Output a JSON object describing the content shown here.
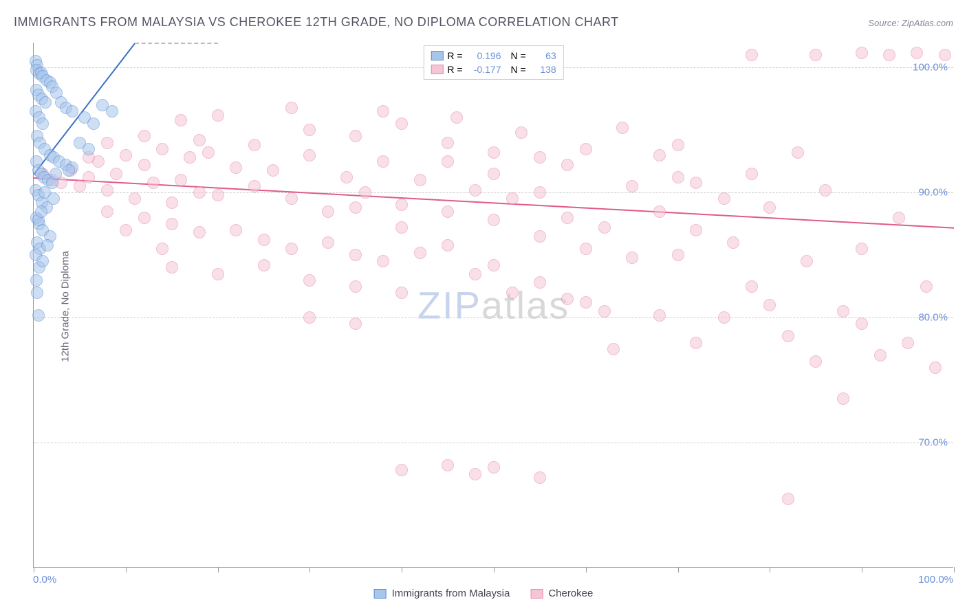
{
  "title": "IMMIGRANTS FROM MALAYSIA VS CHEROKEE 12TH GRADE, NO DIPLOMA CORRELATION CHART",
  "source_label": "Source:",
  "source_value": "ZipAtlas.com",
  "ylabel": "12th Grade, No Diploma",
  "watermark_a": "ZIP",
  "watermark_b": "atlas",
  "chart": {
    "type": "scatter",
    "xlim": [
      0,
      100
    ],
    "ylim": [
      60,
      102
    ],
    "x_ticks": [
      0,
      10,
      20,
      30,
      40,
      50,
      60,
      70,
      80,
      90,
      100
    ],
    "y_ticks": [
      70,
      80,
      90,
      100
    ],
    "x_tick_labels": {
      "0": "0.0%",
      "100": "100.0%"
    },
    "y_tick_labels": {
      "70": "70.0%",
      "80": "80.0%",
      "90": "90.0%",
      "100": "100.0%"
    },
    "grid_color": "#cccccc",
    "axis_color": "#999999",
    "tick_label_color": "#6a8fd8",
    "background_color": "#ffffff",
    "point_radius": 9,
    "point_stroke_width": 1.2,
    "point_fill_opacity": 0.25
  },
  "series": [
    {
      "name": "Immigrants from Malaysia",
      "color_stroke": "#5b8fd6",
      "color_fill": "#a8c5ea",
      "R_label": "R =",
      "R_value": "0.196",
      "N_label": "N =",
      "N_value": "63",
      "trend": {
        "x1": 0,
        "y1": 91.5,
        "x2": 11,
        "y2": 102,
        "color": "#3a6fc8",
        "width": 2,
        "dash_ext": true,
        "dash_x2": 20,
        "dash_y2": 110
      },
      "points": [
        [
          0.2,
          100.5
        ],
        [
          0.4,
          100.2
        ],
        [
          0.3,
          99.8
        ],
        [
          0.6,
          99.5
        ],
        [
          0.8,
          99.6
        ],
        [
          1.0,
          99.3
        ],
        [
          1.4,
          99.0
        ],
        [
          1.8,
          98.8
        ],
        [
          0.3,
          98.2
        ],
        [
          0.5,
          97.8
        ],
        [
          0.9,
          97.5
        ],
        [
          1.3,
          97.2
        ],
        [
          0.2,
          96.5
        ],
        [
          0.6,
          96.0
        ],
        [
          1.0,
          95.5
        ],
        [
          2.0,
          98.5
        ],
        [
          2.5,
          98.0
        ],
        [
          3.0,
          97.2
        ],
        [
          3.5,
          96.8
        ],
        [
          4.2,
          96.5
        ],
        [
          5.5,
          96.0
        ],
        [
          6.5,
          95.5
        ],
        [
          7.5,
          97.0
        ],
        [
          8.5,
          96.5
        ],
        [
          0.4,
          94.5
        ],
        [
          0.7,
          94.0
        ],
        [
          1.2,
          93.5
        ],
        [
          1.8,
          93.0
        ],
        [
          2.2,
          92.8
        ],
        [
          2.8,
          92.5
        ],
        [
          3.5,
          92.2
        ],
        [
          4.2,
          92.0
        ],
        [
          0.3,
          92.5
        ],
        [
          0.5,
          91.8
        ],
        [
          0.8,
          91.5
        ],
        [
          1.1,
          91.2
        ],
        [
          1.6,
          91.0
        ],
        [
          2.0,
          90.8
        ],
        [
          5.0,
          94.0
        ],
        [
          6.0,
          93.5
        ],
        [
          0.2,
          90.2
        ],
        [
          0.5,
          89.8
        ],
        [
          0.9,
          89.2
        ],
        [
          1.4,
          88.8
        ],
        [
          0.3,
          88.0
        ],
        [
          0.6,
          87.5
        ],
        [
          1.0,
          87.0
        ],
        [
          1.8,
          86.5
        ],
        [
          0.4,
          86.0
        ],
        [
          0.7,
          85.5
        ],
        [
          0.2,
          85.0
        ],
        [
          0.5,
          87.8
        ],
        [
          0.8,
          88.5
        ],
        [
          1.2,
          90.0
        ],
        [
          2.4,
          91.5
        ],
        [
          3.8,
          91.8
        ],
        [
          0.3,
          83.0
        ],
        [
          0.6,
          84.0
        ],
        [
          0.4,
          82.0
        ],
        [
          0.5,
          80.2
        ],
        [
          1.0,
          84.5
        ],
        [
          1.5,
          85.8
        ],
        [
          2.2,
          89.5
        ]
      ]
    },
    {
      "name": "Cherokee",
      "color_stroke": "#e88aa8",
      "color_fill": "#f5c5d4",
      "R_label": "R =",
      "R_value": "-0.177",
      "N_label": "N =",
      "N_value": "138",
      "trend": {
        "x1": 0,
        "y1": 91.2,
        "x2": 100,
        "y2": 87.2,
        "color": "#e05a8a",
        "width": 2
      },
      "points": [
        [
          1,
          91.5
        ],
        [
          2,
          91.0
        ],
        [
          3,
          90.8
        ],
        [
          4,
          91.8
        ],
        [
          5,
          90.5
        ],
        [
          6,
          91.2
        ],
        [
          7,
          92.5
        ],
        [
          8,
          90.2
        ],
        [
          9,
          91.5
        ],
        [
          10,
          93.0
        ],
        [
          11,
          89.5
        ],
        [
          12,
          92.2
        ],
        [
          13,
          90.8
        ],
        [
          14,
          93.5
        ],
        [
          15,
          89.2
        ],
        [
          16,
          91.0
        ],
        [
          17,
          92.8
        ],
        [
          18,
          90.0
        ],
        [
          19,
          93.2
        ],
        [
          20,
          89.8
        ],
        [
          22,
          92.0
        ],
        [
          24,
          90.5
        ],
        [
          26,
          91.8
        ],
        [
          28,
          89.5
        ],
        [
          30,
          93.0
        ],
        [
          32,
          88.5
        ],
        [
          34,
          91.2
        ],
        [
          36,
          90.0
        ],
        [
          38,
          92.5
        ],
        [
          40,
          89.0
        ],
        [
          12,
          88.0
        ],
        [
          15,
          87.5
        ],
        [
          18,
          86.8
        ],
        [
          22,
          87.0
        ],
        [
          25,
          86.2
        ],
        [
          28,
          85.5
        ],
        [
          32,
          86.0
        ],
        [
          35,
          85.0
        ],
        [
          38,
          84.5
        ],
        [
          42,
          85.2
        ],
        [
          15,
          84.0
        ],
        [
          20,
          83.5
        ],
        [
          25,
          84.2
        ],
        [
          30,
          83.0
        ],
        [
          35,
          82.5
        ],
        [
          40,
          82.0
        ],
        [
          8,
          94.0
        ],
        [
          12,
          94.5
        ],
        [
          18,
          94.2
        ],
        [
          24,
          93.8
        ],
        [
          30,
          95.0
        ],
        [
          35,
          94.5
        ],
        [
          40,
          95.5
        ],
        [
          45,
          94.0
        ],
        [
          50,
          93.2
        ],
        [
          55,
          92.8
        ],
        [
          60,
          93.5
        ],
        [
          65,
          90.5
        ],
        [
          70,
          91.2
        ],
        [
          75,
          89.5
        ],
        [
          42,
          91.0
        ],
        [
          45,
          88.5
        ],
        [
          48,
          90.2
        ],
        [
          50,
          87.8
        ],
        [
          52,
          89.5
        ],
        [
          55,
          86.5
        ],
        [
          58,
          88.0
        ],
        [
          60,
          85.5
        ],
        [
          62,
          87.2
        ],
        [
          65,
          84.8
        ],
        [
          45,
          92.5
        ],
        [
          50,
          91.5
        ],
        [
          55,
          90.0
        ],
        [
          48,
          83.5
        ],
        [
          52,
          82.0
        ],
        [
          58,
          81.5
        ],
        [
          62,
          80.5
        ],
        [
          68,
          88.5
        ],
        [
          70,
          85.0
        ],
        [
          72,
          87.0
        ],
        [
          75,
          80.0
        ],
        [
          78,
          82.5
        ],
        [
          80,
          88.8
        ],
        [
          82,
          78.5
        ],
        [
          85,
          76.5
        ],
        [
          88,
          80.5
        ],
        [
          90,
          79.5
        ],
        [
          92,
          77.0
        ],
        [
          95,
          78.0
        ],
        [
          98,
          76.0
        ],
        [
          30,
          80.0
        ],
        [
          35,
          79.5
        ],
        [
          40,
          67.8
        ],
        [
          45,
          68.2
        ],
        [
          48,
          67.5
        ],
        [
          50,
          68.0
        ],
        [
          55,
          67.2
        ],
        [
          78,
          101.0
        ],
        [
          85,
          101.0
        ],
        [
          90,
          101.2
        ],
        [
          93,
          101.0
        ],
        [
          96,
          101.2
        ],
        [
          99,
          101.0
        ],
        [
          64,
          95.2
        ],
        [
          68,
          93.0
        ],
        [
          72,
          90.8
        ],
        [
          76,
          86.0
        ],
        [
          80,
          81.0
        ],
        [
          84,
          84.5
        ],
        [
          88,
          73.5
        ],
        [
          35,
          88.8
        ],
        [
          40,
          87.2
        ],
        [
          45,
          85.8
        ],
        [
          50,
          84.2
        ],
        [
          55,
          82.8
        ],
        [
          60,
          81.2
        ],
        [
          8,
          88.5
        ],
        [
          10,
          87.0
        ],
        [
          14,
          85.5
        ],
        [
          6,
          92.8
        ],
        [
          82,
          65.5
        ],
        [
          70,
          93.8
        ],
        [
          63,
          77.5
        ],
        [
          58,
          92.2
        ],
        [
          53,
          94.8
        ],
        [
          46,
          96.0
        ],
        [
          38,
          96.5
        ],
        [
          28,
          96.8
        ],
        [
          20,
          96.2
        ],
        [
          16,
          95.8
        ],
        [
          90,
          85.5
        ],
        [
          86,
          90.2
        ],
        [
          94,
          88.0
        ],
        [
          97,
          82.5
        ],
        [
          72,
          78.0
        ],
        [
          68,
          80.2
        ],
        [
          78,
          91.5
        ],
        [
          83,
          93.2
        ]
      ]
    }
  ],
  "legend_bottom": [
    {
      "label": "Immigrants from Malaysia",
      "stroke": "#5b8fd6",
      "fill": "#a8c5ea"
    },
    {
      "label": "Cherokee",
      "stroke": "#e88aa8",
      "fill": "#f5c5d4"
    }
  ]
}
